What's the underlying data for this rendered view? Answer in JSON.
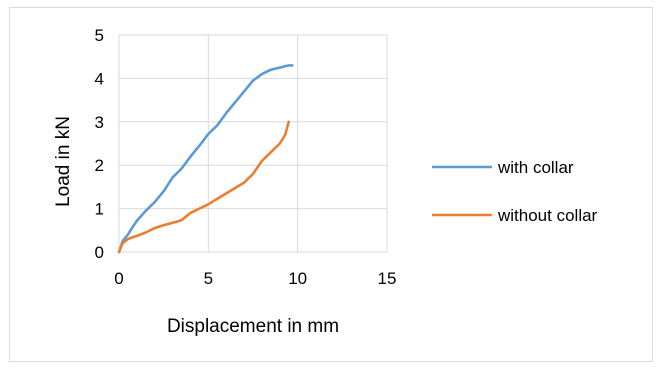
{
  "chart_data": {
    "type": "line",
    "xlabel": "Displacement in mm",
    "ylabel": "Load in kN",
    "xlim": [
      0,
      15
    ],
    "ylim": [
      0,
      5
    ],
    "xticks": [
      "0",
      "5",
      "10",
      "15"
    ],
    "yticks": [
      "0",
      "1",
      "2",
      "3",
      "4",
      "5"
    ],
    "grid": true,
    "legend_position": "right",
    "series": [
      {
        "name": "with collar",
        "color": "#5b9bd5",
        "x": [
          0,
          0.2,
          0.5,
          0.8,
          1.0,
          1.5,
          2.0,
          2.5,
          3.0,
          3.5,
          4.0,
          4.5,
          5.0,
          5.5,
          6.0,
          6.5,
          7.0,
          7.5,
          8.0,
          8.5,
          9.0,
          9.5,
          9.7
        ],
        "y": [
          0.0,
          0.25,
          0.4,
          0.6,
          0.72,
          0.95,
          1.15,
          1.4,
          1.72,
          1.92,
          2.2,
          2.45,
          2.72,
          2.92,
          3.2,
          3.45,
          3.7,
          3.95,
          4.1,
          4.2,
          4.25,
          4.3,
          4.3
        ]
      },
      {
        "name": "without collar",
        "color": "#ed7d31",
        "x": [
          0,
          0.2,
          0.5,
          1.0,
          1.5,
          2.0,
          2.5,
          3.0,
          3.5,
          4.0,
          5.0,
          6.0,
          7.0,
          7.5,
          8.0,
          8.5,
          9.0,
          9.3,
          9.5
        ],
        "y": [
          0.0,
          0.2,
          0.3,
          0.37,
          0.45,
          0.55,
          0.62,
          0.67,
          0.73,
          0.9,
          1.1,
          1.35,
          1.6,
          1.8,
          2.1,
          2.3,
          2.5,
          2.7,
          3.0
        ]
      }
    ]
  }
}
